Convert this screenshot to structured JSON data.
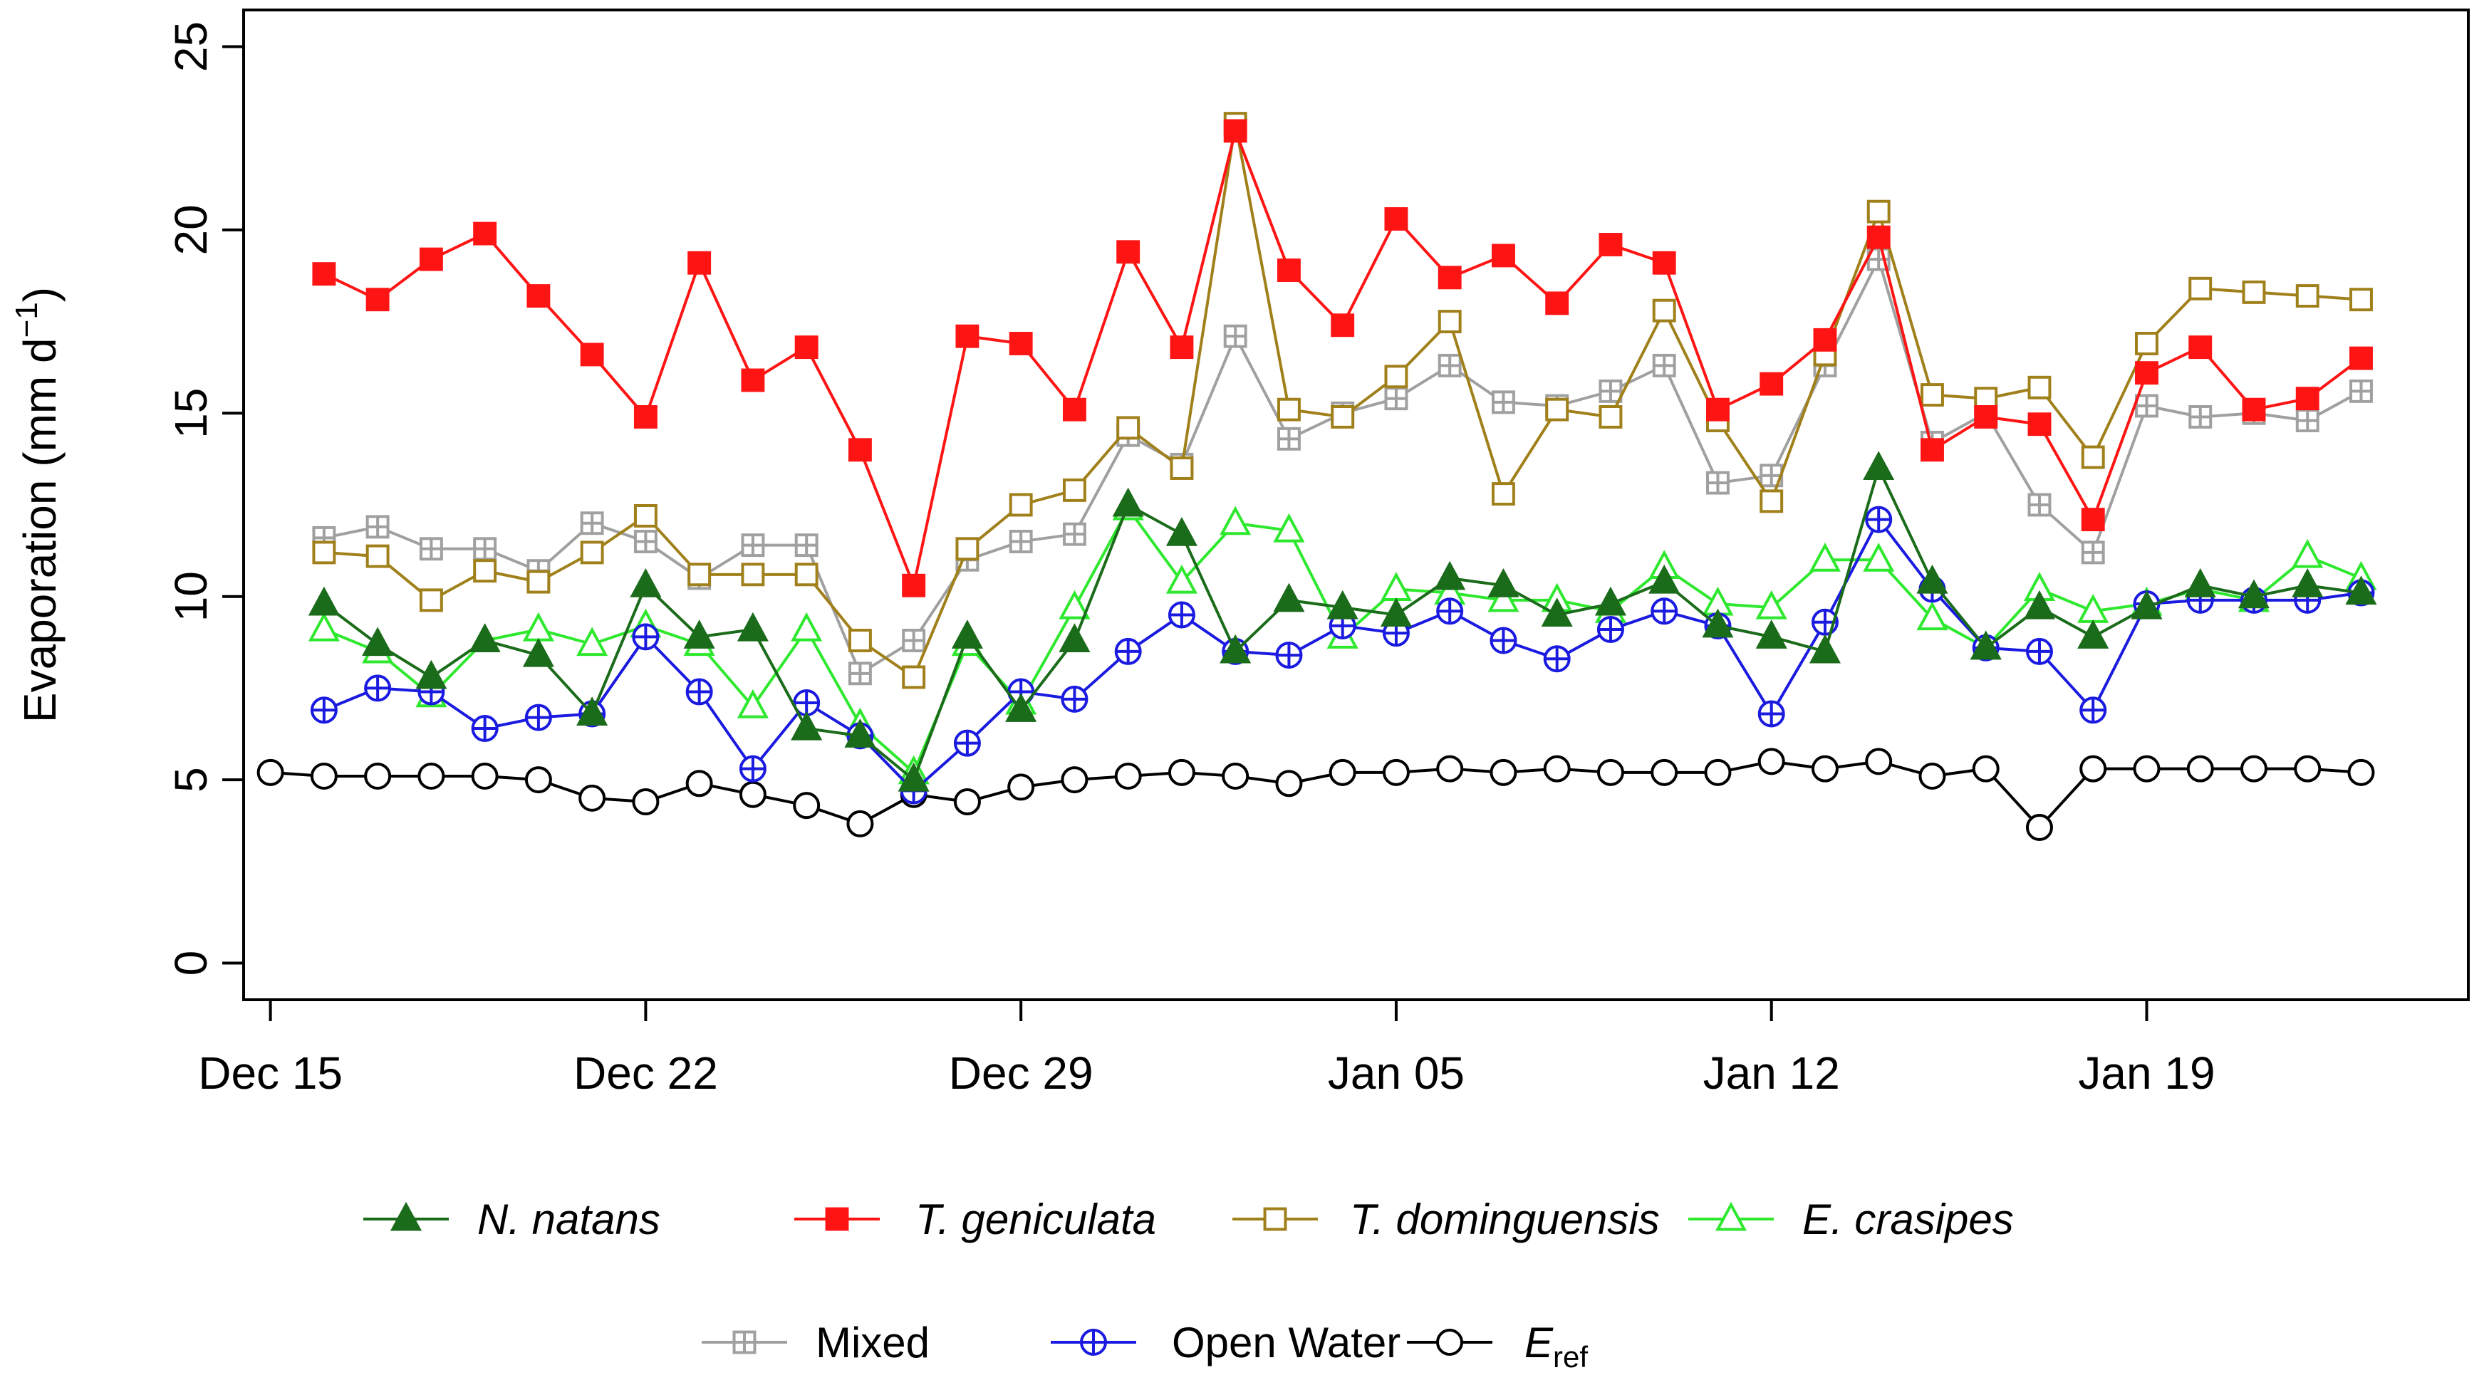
{
  "chart_data": {
    "type": "line",
    "title": "",
    "ylabel": "Evaporation (mm d",
    "ylabel_sup": "−1",
    "ylabel_close": ")",
    "xlabel": "",
    "ylim": [
      -1,
      26
    ],
    "xlim": [
      -0.5,
      41
    ],
    "yticks": [
      0,
      5,
      10,
      15,
      20,
      25
    ],
    "ytick_labels": [
      "0",
      "5",
      "10",
      "15",
      "20",
      "25"
    ],
    "xticks": [
      0,
      7,
      14,
      21,
      28,
      35
    ],
    "xtick_labels": [
      "Dec 15",
      "Dec 22",
      "Dec 29",
      "Jan 05",
      "Jan 12",
      "Jan 19"
    ],
    "x": [
      1,
      2,
      3,
      4,
      5,
      6,
      7,
      8,
      9,
      10,
      11,
      12,
      13,
      14,
      15,
      16,
      17,
      18,
      19,
      20,
      21,
      22,
      23,
      24,
      25,
      26,
      27,
      28,
      29,
      30,
      31,
      32,
      33,
      34,
      35,
      36,
      37,
      38,
      39
    ],
    "series": [
      {
        "name": "N. natans",
        "italic": true,
        "color": "#1a6b1a",
        "marker": "triangle-filled",
        "values": [
          9.8,
          8.7,
          7.8,
          8.8,
          8.4,
          6.8,
          10.3,
          8.9,
          9.1,
          6.4,
          6.2,
          5.0,
          8.9,
          6.9,
          8.8,
          12.5,
          11.7,
          8.5,
          9.9,
          9.7,
          9.5,
          10.5,
          10.3,
          9.5,
          9.8,
          10.4,
          9.2,
          8.9,
          8.5,
          13.5,
          10.4,
          8.6,
          9.7,
          8.9,
          9.7,
          10.3,
          10.0,
          10.3,
          10.1
        ]
      },
      {
        "name": "T. geniculata",
        "italic": true,
        "color": "#ff1414",
        "marker": "square-filled",
        "values": [
          18.8,
          18.1,
          19.2,
          19.9,
          18.2,
          16.6,
          14.9,
          19.1,
          15.9,
          16.8,
          14.0,
          10.3,
          17.1,
          16.9,
          15.1,
          19.4,
          16.8,
          22.7,
          18.9,
          17.4,
          20.3,
          18.7,
          19.3,
          18.0,
          19.6,
          19.1,
          15.1,
          15.8,
          17.0,
          19.8,
          14.0,
          14.9,
          14.7,
          12.1,
          16.1,
          16.8,
          15.1,
          15.4,
          16.5
        ]
      },
      {
        "name": "T. dominguensis",
        "italic": true,
        "color": "#a0801a",
        "marker": "square-open",
        "values": [
          11.2,
          11.1,
          9.9,
          10.7,
          10.4,
          11.2,
          12.2,
          10.6,
          10.6,
          10.6,
          8.8,
          7.8,
          11.3,
          12.5,
          12.9,
          14.6,
          13.5,
          22.9,
          15.1,
          14.9,
          16.0,
          17.5,
          12.8,
          15.1,
          14.9,
          17.8,
          14.8,
          12.6,
          16.6,
          20.5,
          15.5,
          15.4,
          15.7,
          13.8,
          16.9,
          18.4,
          18.3,
          18.2,
          18.1
        ]
      },
      {
        "name": "E. crasipes",
        "italic": true,
        "color": "#2ee82e",
        "marker": "triangle-open",
        "values": [
          9.1,
          8.5,
          7.3,
          8.8,
          9.1,
          8.7,
          9.2,
          8.7,
          7.0,
          9.1,
          6.5,
          5.2,
          8.7,
          7.1,
          9.7,
          12.4,
          10.4,
          12.0,
          11.8,
          8.9,
          10.2,
          10.1,
          9.9,
          9.9,
          9.6,
          10.8,
          9.8,
          9.7,
          11.0,
          11.0,
          9.4,
          8.6,
          10.2,
          9.6,
          9.8,
          10.2,
          9.9,
          11.1,
          10.5
        ]
      },
      {
        "name": "Mixed",
        "italic": false,
        "color": "#a0a0a0",
        "marker": "square-plus",
        "values": [
          11.6,
          11.9,
          11.3,
          11.3,
          10.7,
          12.0,
          11.5,
          10.5,
          11.4,
          11.4,
          7.9,
          8.8,
          11.0,
          11.5,
          11.7,
          14.4,
          13.6,
          17.1,
          14.3,
          15.0,
          15.4,
          16.3,
          15.3,
          15.2,
          15.6,
          16.3,
          13.1,
          13.3,
          16.3,
          19.2,
          14.2,
          15.0,
          12.5,
          11.2,
          15.2,
          14.9,
          15.0,
          14.8,
          15.6
        ]
      },
      {
        "name": "Open Water",
        "italic": false,
        "color": "#1a1ae0",
        "marker": "circle-plus",
        "values": [
          6.9,
          7.5,
          7.4,
          6.4,
          6.7,
          6.8,
          8.9,
          7.4,
          5.3,
          7.1,
          6.2,
          4.7,
          6.0,
          7.4,
          7.2,
          8.5,
          9.5,
          8.5,
          8.4,
          9.2,
          9.0,
          9.6,
          8.8,
          8.3,
          9.1,
          9.6,
          9.2,
          6.8,
          9.3,
          12.1,
          10.2,
          8.6,
          8.5,
          6.9,
          9.8,
          9.9,
          9.9,
          9.9,
          10.1
        ]
      },
      {
        "name": "E",
        "name_sub": "ref",
        "italic": true,
        "color": "#000000",
        "marker": "circle-open",
        "x": [
          0,
          1,
          2,
          3,
          4,
          5,
          6,
          7,
          8,
          9,
          10,
          11,
          12,
          13,
          14,
          15,
          16,
          17,
          18,
          19,
          20,
          21,
          22,
          23,
          24,
          25,
          26,
          27,
          28,
          29,
          30,
          31,
          32,
          33,
          34,
          35,
          36,
          37,
          38,
          39
        ],
        "values": [
          5.2,
          5.1,
          5.1,
          5.1,
          5.1,
          5.0,
          4.5,
          4.4,
          4.9,
          4.6,
          4.3,
          3.8,
          4.6,
          4.4,
          4.8,
          5.0,
          5.1,
          5.2,
          5.1,
          4.9,
          5.2,
          5.2,
          5.3,
          5.2,
          5.3,
          5.2,
          5.2,
          5.2,
          5.5,
          5.3,
          5.5,
          5.1,
          5.3,
          3.7,
          5.3,
          5.3,
          5.3,
          5.3,
          5.3,
          5.2
        ]
      }
    ],
    "legend": {
      "placement": "bottom",
      "rows": 2
    }
  }
}
